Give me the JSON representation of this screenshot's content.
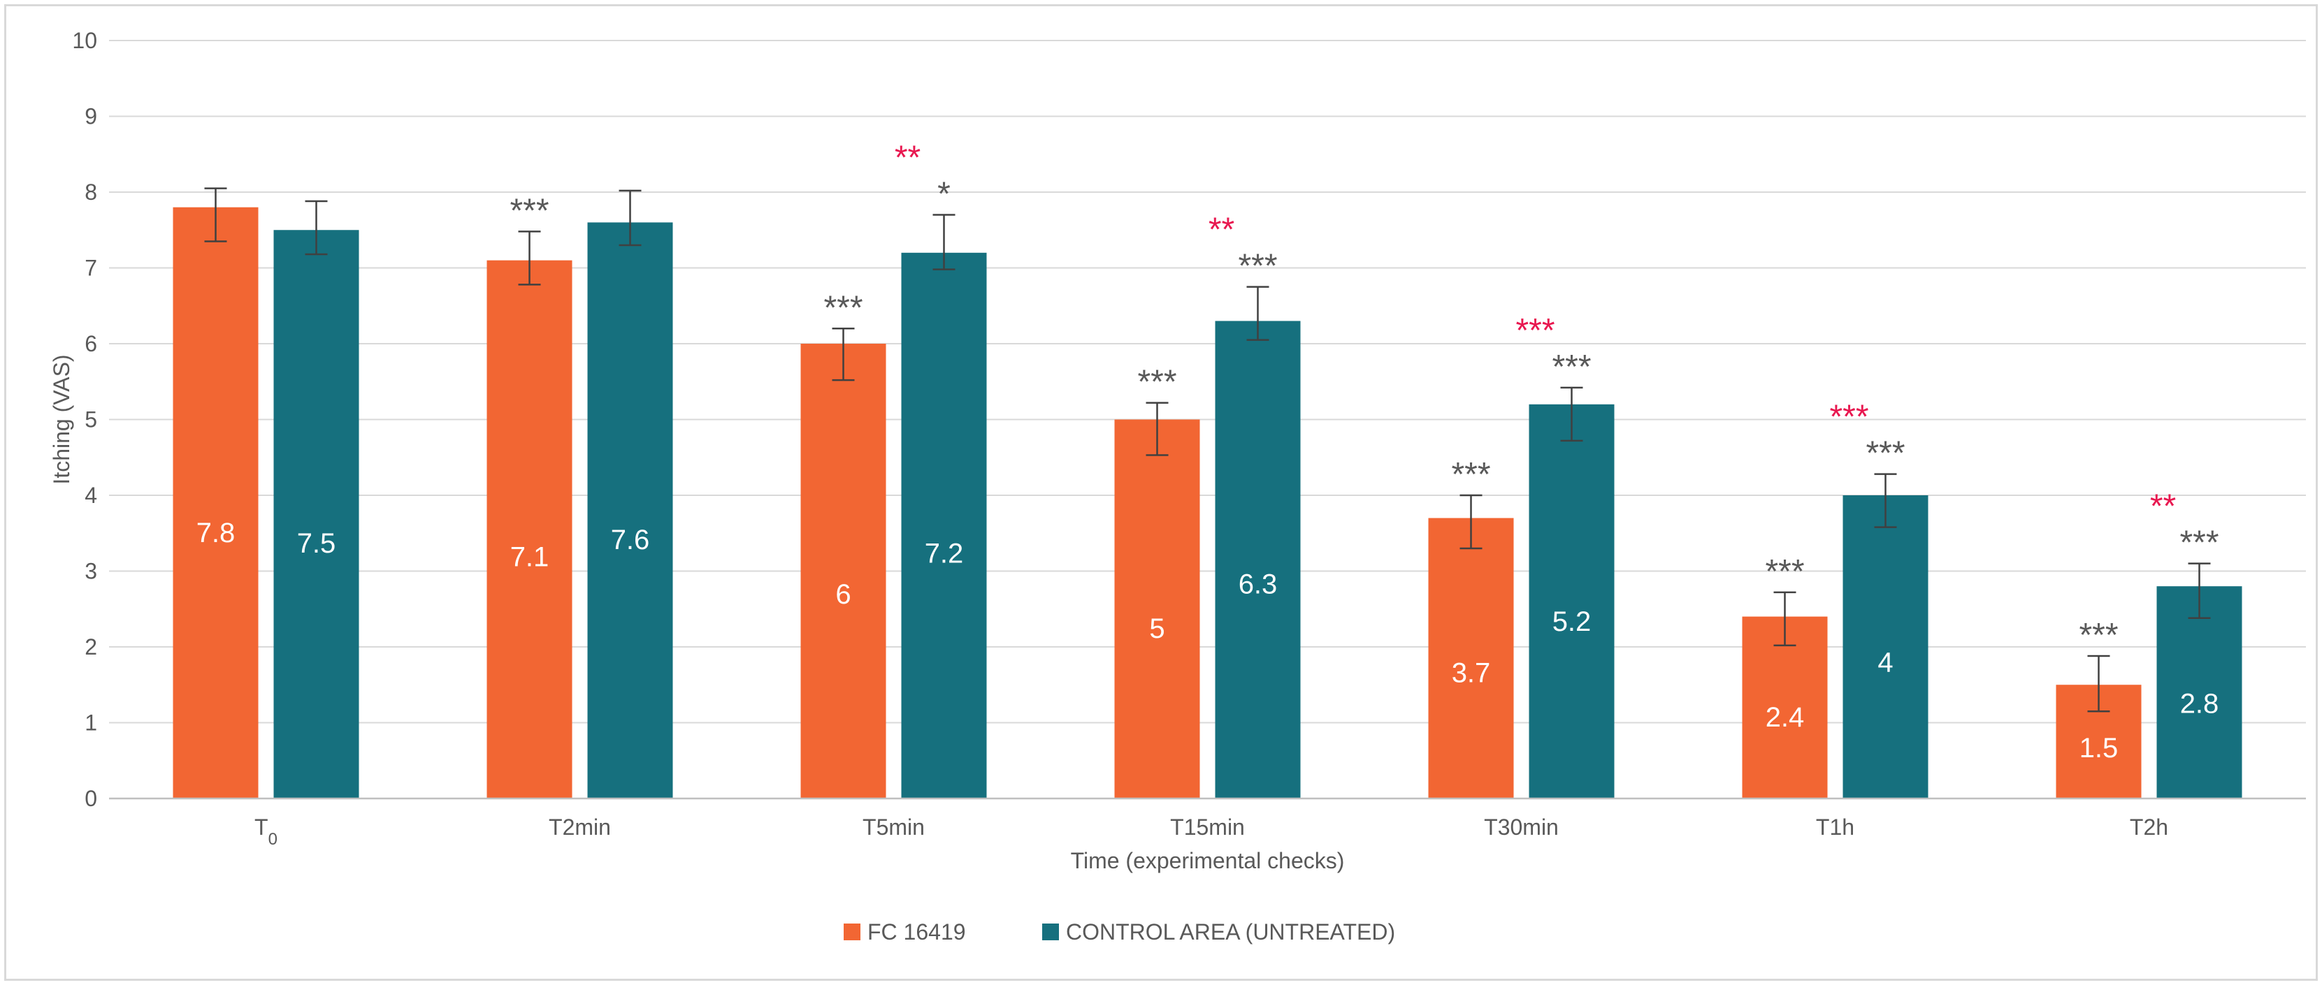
{
  "chart_data": {
    "type": "bar",
    "title": "",
    "categories": [
      "T",
      "T2min",
      "T5min",
      "T15min",
      "T30min",
      "T1h",
      "T2h"
    ],
    "category_subscripts": [
      "0",
      "",
      "",
      "",
      "",
      "",
      ""
    ],
    "xlabel": "Time (experimental checks)",
    "ylabel": "Itching (VAS)",
    "ylim": [
      0,
      10
    ],
    "yticks": [
      "0",
      "1",
      "2",
      "3",
      "4",
      "5",
      "6",
      "7",
      "8",
      "9",
      "10"
    ],
    "grid": true,
    "legend_position": "bottom-center",
    "series": [
      {
        "name": "FC 16419",
        "color": "#f26633",
        "values": [
          7.8,
          7.1,
          6,
          5,
          3.7,
          2.4,
          1.5
        ],
        "value_labels": [
          "7.8",
          "7.1",
          "6",
          "5",
          "3.7",
          "2.4",
          "1.5"
        ],
        "error_upper": [
          8.05,
          7.48,
          6.2,
          5.22,
          4.0,
          2.72,
          1.88
        ],
        "error_lower": [
          7.35,
          6.78,
          5.52,
          4.53,
          3.3,
          2.02,
          1.15
        ],
        "significance": [
          "",
          "***",
          "***",
          "***",
          "***",
          "***",
          "***"
        ]
      },
      {
        "name": "CONTROL AREA (UNTREATED)",
        "color": "#16707e",
        "values": [
          7.5,
          7.6,
          7.2,
          6.3,
          5.2,
          4,
          2.8
        ],
        "value_labels": [
          "7.5",
          "7.6",
          "7.2",
          "6.3",
          "5.2",
          "4",
          "2.8"
        ],
        "error_upper": [
          7.88,
          8.02,
          7.7,
          6.75,
          5.42,
          4.28,
          3.1
        ],
        "error_lower": [
          7.18,
          7.3,
          6.98,
          6.05,
          4.72,
          3.58,
          2.38
        ],
        "significance": [
          "",
          "",
          "*",
          "***",
          "***",
          "***",
          "***"
        ]
      }
    ],
    "between_group_significance": [
      "",
      "",
      "**",
      "**",
      "***",
      "***",
      "**"
    ],
    "significance_color": "#595959",
    "between_group_color": "#e8174f",
    "grid_color": "#d9d9d9",
    "axis_color": "#bfbfbf"
  }
}
